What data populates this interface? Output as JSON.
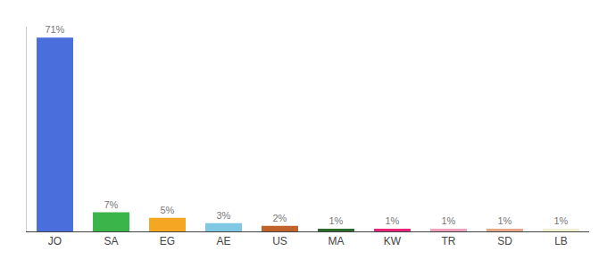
{
  "chart_data": {
    "type": "bar",
    "categories": [
      "JO",
      "SA",
      "EG",
      "AE",
      "US",
      "MA",
      "KW",
      "TR",
      "SD",
      "LB"
    ],
    "values": [
      71,
      7,
      5,
      3,
      2,
      1,
      1,
      1,
      1,
      1
    ],
    "value_labels": [
      "71%",
      "7%",
      "5%",
      "3%",
      "2%",
      "1%",
      "1%",
      "1%",
      "1%",
      "1%"
    ],
    "colors": [
      "#4a6fdc",
      "#3ab54a",
      "#f5a623",
      "#7ec8e3",
      "#c0622a",
      "#2d6b2d",
      "#e8237a",
      "#f0a0b8",
      "#e8a888",
      "#f0f0d0"
    ],
    "ylim": [
      0,
      75
    ],
    "grid": false,
    "data_labels": true,
    "tick_labels": "x"
  }
}
